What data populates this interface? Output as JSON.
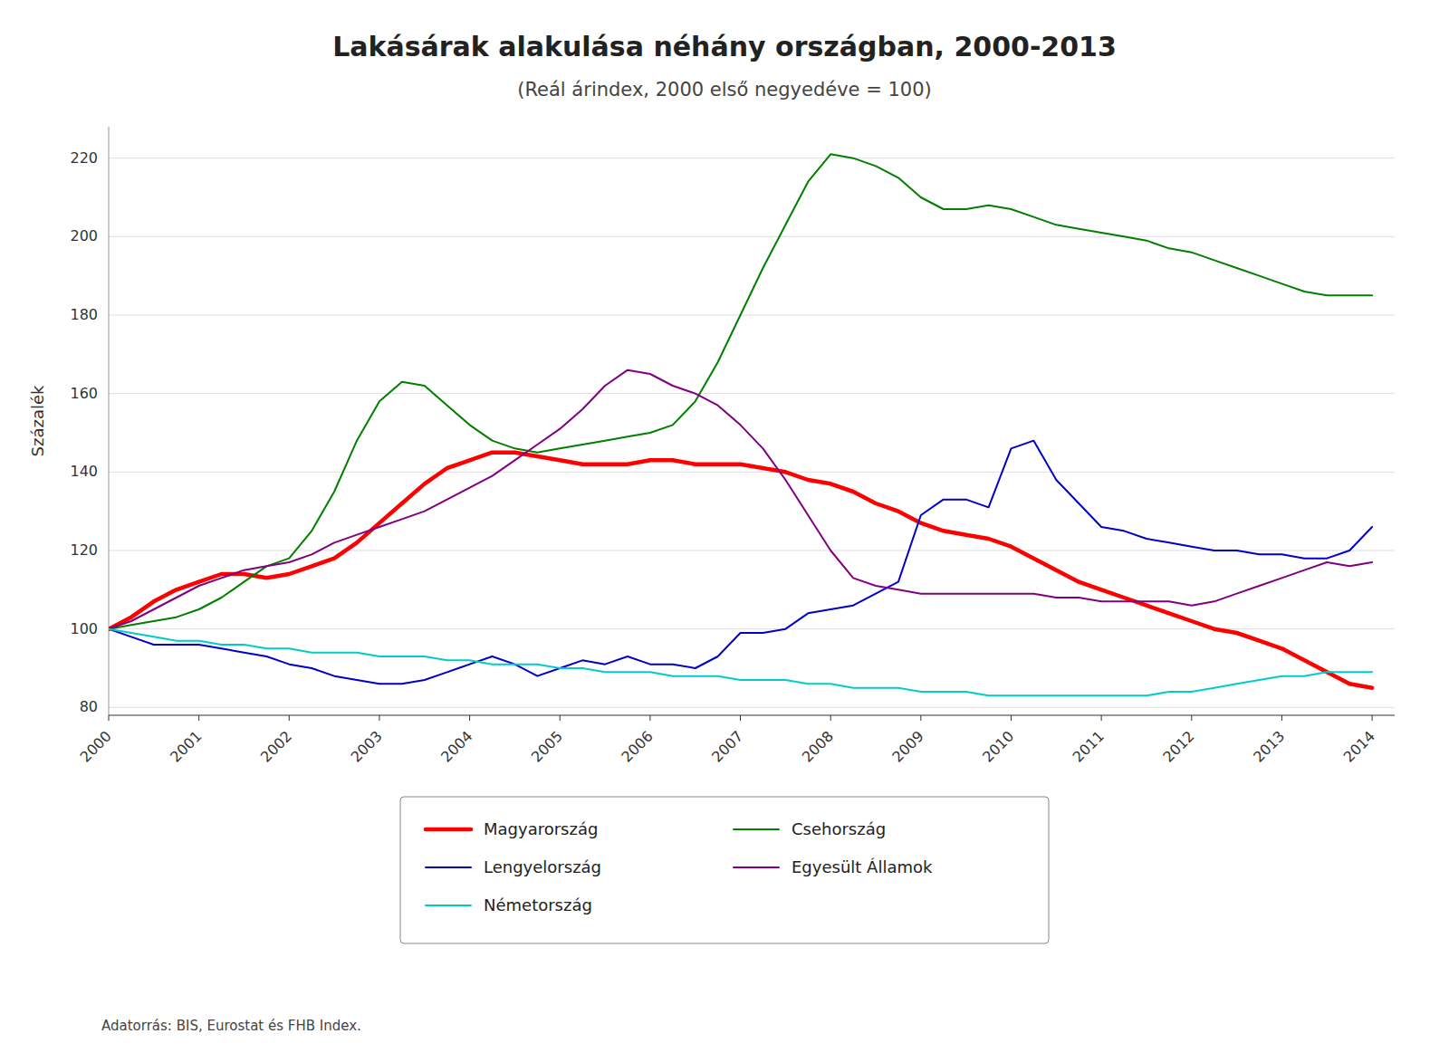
{
  "chart_data": {
    "type": "line",
    "title": "Lakásárak alakulása néhány országban, 2000-2013",
    "subtitle": "(Reál árindex, 2000 első negyedéve = 100)",
    "ylabel": "Százalék",
    "source": "Adatorrás: BIS, Eurostat és FHB Index.",
    "xlim": [
      2000.0,
      2014.25
    ],
    "xticks": [
      2000,
      2001,
      2002,
      2003,
      2004,
      2005,
      2006,
      2007,
      2008,
      2009,
      2010,
      2011,
      2012,
      2013,
      2014
    ],
    "ylim": [
      78,
      228
    ],
    "yticks": [
      80,
      100,
      120,
      140,
      160,
      180,
      200,
      220
    ],
    "grid": true,
    "legend": "bottom",
    "x": [
      2000.0,
      2000.25,
      2000.5,
      2000.75,
      2001.0,
      2001.25,
      2001.5,
      2001.75,
      2002.0,
      2002.25,
      2002.5,
      2002.75,
      2003.0,
      2003.25,
      2003.5,
      2003.75,
      2004.0,
      2004.25,
      2004.5,
      2004.75,
      2005.0,
      2005.25,
      2005.5,
      2005.75,
      2006.0,
      2006.25,
      2006.5,
      2006.75,
      2007.0,
      2007.25,
      2007.5,
      2007.75,
      2008.0,
      2008.25,
      2008.5,
      2008.75,
      2009.0,
      2009.25,
      2009.5,
      2009.75,
      2010.0,
      2010.25,
      2010.5,
      2010.75,
      2011.0,
      2011.25,
      2011.5,
      2011.75,
      2012.0,
      2012.25,
      2012.5,
      2012.75,
      2013.0,
      2013.25,
      2013.5,
      2013.75,
      2014.0
    ],
    "series": [
      {
        "name": "Magyarország",
        "color": "#ff0000",
        "values": [
          100,
          103,
          107,
          110,
          112,
          114,
          114,
          113,
          114,
          116,
          118,
          122,
          127,
          132,
          137,
          141,
          143,
          145,
          145,
          144,
          143,
          142,
          142,
          142,
          143,
          143,
          142,
          142,
          142,
          141,
          140,
          138,
          137,
          135,
          132,
          130,
          127,
          125,
          124,
          123,
          121,
          118,
          115,
          112,
          110,
          108,
          106,
          104,
          102,
          100,
          99,
          97,
          95,
          92,
          89,
          86,
          85
        ]
      },
      {
        "name": "Csehország",
        "color": "#007f00",
        "values": [
          100,
          101,
          102,
          103,
          105,
          108,
          112,
          116,
          118,
          125,
          135,
          148,
          158,
          163,
          162,
          157,
          152,
          148,
          146,
          145,
          146,
          147,
          148,
          149,
          150,
          152,
          158,
          168,
          180,
          192,
          203,
          214,
          221,
          220,
          218,
          215,
          210,
          207,
          207,
          208,
          207,
          205,
          203,
          202,
          201,
          200,
          199,
          197,
          196,
          194,
          192,
          190,
          188,
          186,
          185,
          185,
          185
        ]
      },
      {
        "name": "Lengyelország",
        "color": "#0000cc",
        "values": [
          100,
          98,
          96,
          96,
          96,
          95,
          94,
          93,
          91,
          90,
          88,
          87,
          86,
          86,
          87,
          89,
          91,
          93,
          91,
          88,
          90,
          92,
          91,
          93,
          91,
          91,
          90,
          93,
          99,
          99,
          100,
          104,
          105,
          106,
          109,
          112,
          129,
          133,
          133,
          131,
          146,
          148,
          138,
          132,
          126,
          125,
          123,
          122,
          121,
          120,
          120,
          119,
          119,
          118,
          118,
          120,
          126
        ]
      },
      {
        "name": "Egyesült Államok",
        "color": "#800080",
        "values": [
          100,
          102,
          105,
          108,
          111,
          113,
          115,
          116,
          117,
          119,
          122,
          124,
          126,
          128,
          130,
          133,
          136,
          139,
          143,
          147,
          151,
          156,
          162,
          166,
          165,
          162,
          160,
          157,
          152,
          146,
          138,
          129,
          120,
          113,
          111,
          110,
          109,
          109,
          109,
          109,
          109,
          109,
          108,
          108,
          107,
          107,
          107,
          107,
          106,
          107,
          109,
          111,
          113,
          115,
          117,
          116,
          117
        ]
      },
      {
        "name": "Németország",
        "color": "#00cccc",
        "values": [
          100,
          99,
          98,
          97,
          97,
          96,
          96,
          95,
          95,
          94,
          94,
          94,
          93,
          93,
          93,
          92,
          92,
          91,
          91,
          91,
          90,
          90,
          89,
          89,
          89,
          88,
          88,
          88,
          87,
          87,
          87,
          86,
          86,
          85,
          85,
          85,
          84,
          84,
          84,
          83,
          83,
          83,
          83,
          83,
          83,
          83,
          83,
          84,
          84,
          85,
          86,
          87,
          88,
          88,
          89,
          89,
          89
        ]
      }
    ]
  }
}
